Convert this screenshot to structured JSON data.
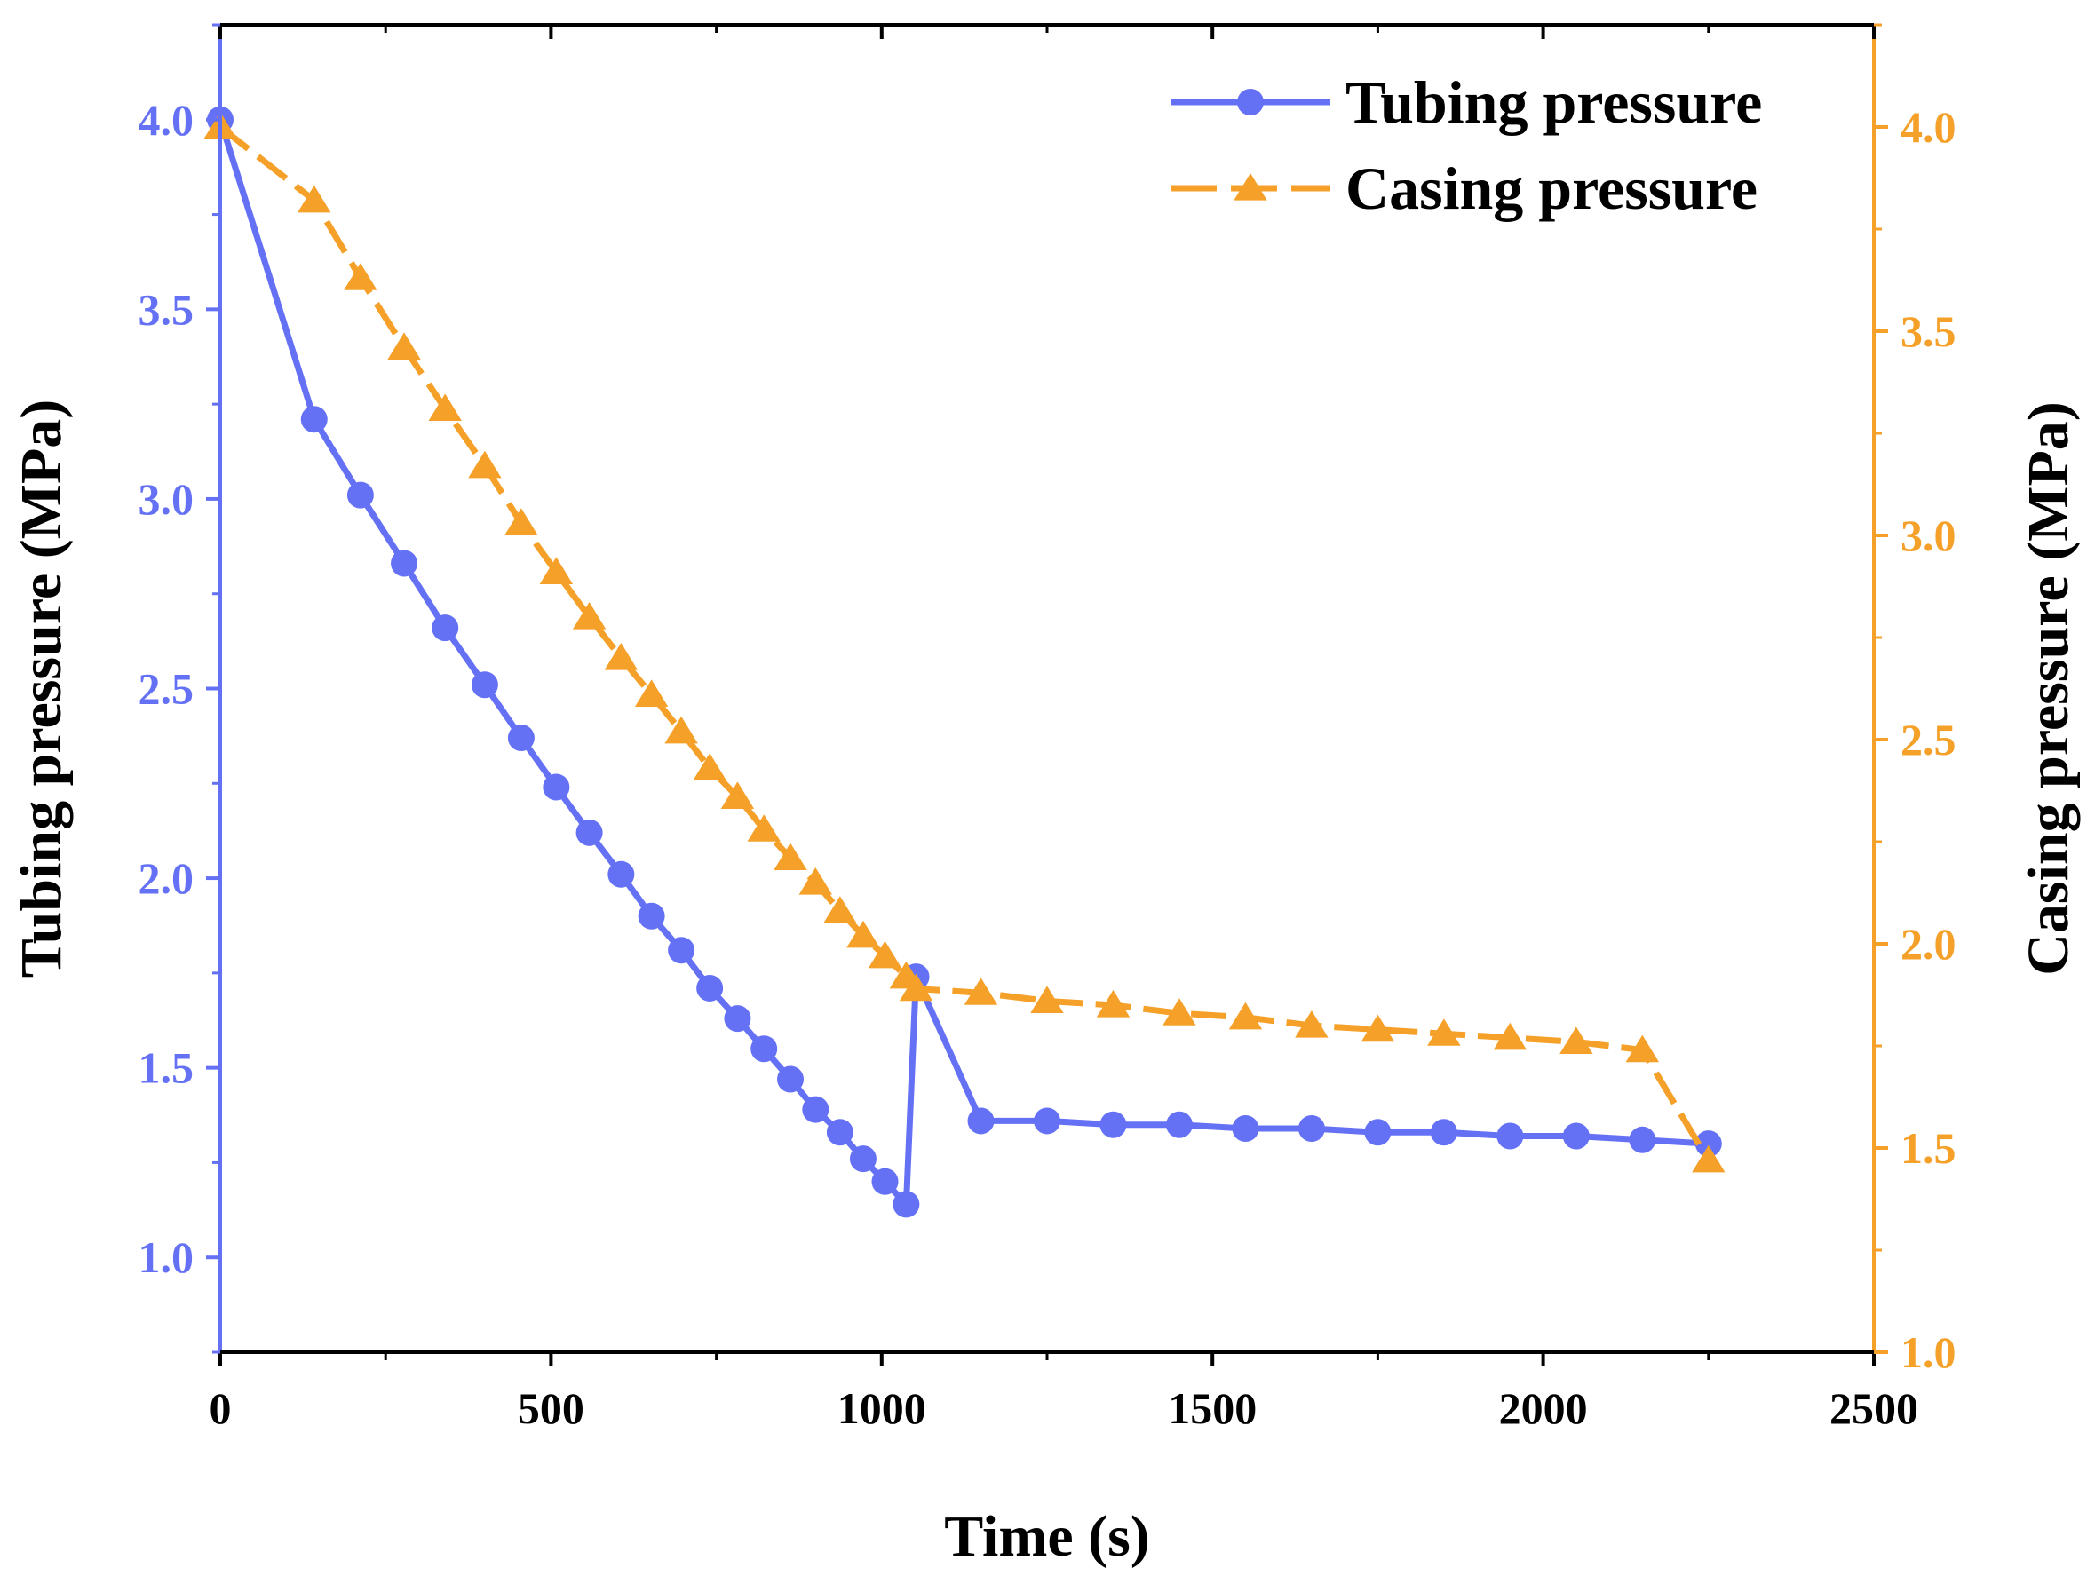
{
  "colors": {
    "tubing": "#6571f5",
    "casing": "#f5a028",
    "axis": "#000000"
  },
  "chart_data": {
    "type": "line",
    "title": "",
    "xlabel": "Time (s)",
    "ylabel_left": "Tubing pressure (MPa)",
    "ylabel_right": "Casing pressure (MPa)",
    "xlim": [
      0,
      2500
    ],
    "ylim_left": [
      0.75,
      4.25
    ],
    "ylim_right": [
      1.0,
      4.25
    ],
    "x_ticks": [
      0,
      500,
      1000,
      1500,
      2000,
      2500
    ],
    "x_tick_labels": [
      "0",
      "500",
      "1000",
      "1500",
      "2000",
      "2500"
    ],
    "y_left_ticks": [
      1.0,
      1.5,
      2.0,
      2.5,
      3.0,
      3.5,
      4.0
    ],
    "y_left_tick_labels": [
      "1.0",
      "1.5",
      "2.0",
      "2.5",
      "3.0",
      "3.5",
      "4.0"
    ],
    "y_right_ticks": [
      1.0,
      1.5,
      2.0,
      2.5,
      3.0,
      3.5,
      4.0
    ],
    "y_right_tick_labels": [
      "1.0",
      "1.5",
      "2.0",
      "2.5",
      "3.0",
      "3.5",
      "4.0"
    ],
    "legend_position": "top-right",
    "series": [
      {
        "name": "Tubing pressure",
        "axis": "left",
        "marker": "circle",
        "line_style": "solid",
        "x": [
          0,
          142,
          212,
          278,
          340,
          400,
          455,
          508,
          558,
          606,
          652,
          697,
          740,
          782,
          822,
          862,
          900,
          937,
          972,
          1005,
          1037,
          1052,
          1150,
          1250,
          1350,
          1450,
          1550,
          1650,
          1750,
          1850,
          1950,
          2050,
          2150,
          2250
        ],
        "y": [
          4.0,
          3.21,
          3.01,
          2.83,
          2.66,
          2.51,
          2.37,
          2.24,
          2.12,
          2.01,
          1.9,
          1.81,
          1.71,
          1.63,
          1.55,
          1.47,
          1.39,
          1.33,
          1.26,
          1.2,
          1.14,
          1.74,
          1.36,
          1.36,
          1.35,
          1.35,
          1.34,
          1.34,
          1.33,
          1.33,
          1.32,
          1.32,
          1.31,
          1.3
        ]
      },
      {
        "name": "Casing pressure",
        "axis": "right",
        "marker": "triangle",
        "line_style": "dashed",
        "x": [
          0,
          142,
          212,
          278,
          340,
          400,
          455,
          508,
          558,
          606,
          652,
          697,
          740,
          782,
          822,
          862,
          900,
          937,
          972,
          1005,
          1037,
          1052,
          1150,
          1250,
          1350,
          1450,
          1550,
          1650,
          1750,
          1850,
          1950,
          2050,
          2150,
          2250
        ],
        "y": [
          4.0,
          3.82,
          3.63,
          3.46,
          3.31,
          3.17,
          3.03,
          2.91,
          2.8,
          2.7,
          2.61,
          2.52,
          2.43,
          2.36,
          2.28,
          2.21,
          2.15,
          2.08,
          2.02,
          1.97,
          1.92,
          1.89,
          1.88,
          1.86,
          1.85,
          1.83,
          1.82,
          1.8,
          1.79,
          1.78,
          1.77,
          1.76,
          1.74,
          1.47
        ]
      }
    ]
  }
}
